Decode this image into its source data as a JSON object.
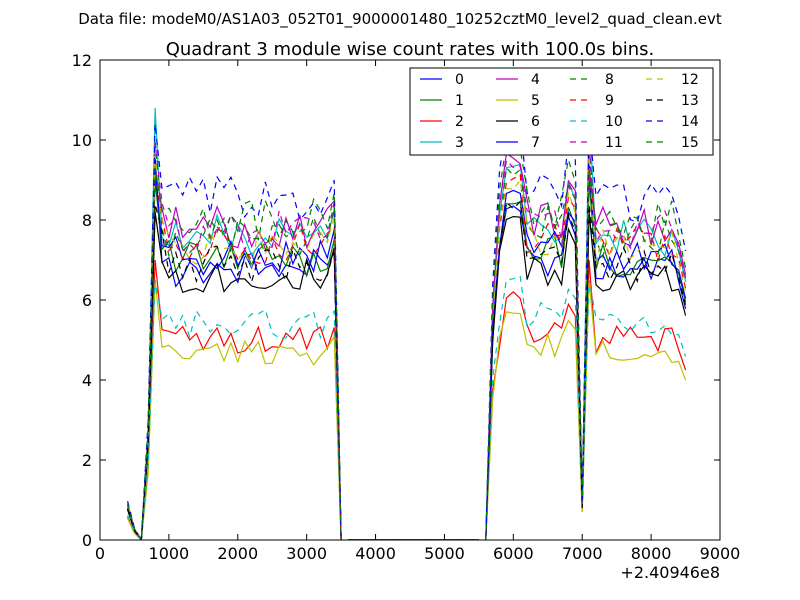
{
  "figure": {
    "suptitle": "Data file: modeM0/AS1A03_052T01_9000001480_10252cztM0_level2_quad_clean.evt"
  },
  "chart_data": {
    "type": "line",
    "title": "Quadrant 3 module wise count rates with 100.0s bins.",
    "xlabel": "",
    "ylabel": "",
    "x_offset_label": "+2.40946e8",
    "xlim": [
      0,
      9000
    ],
    "ylim": [
      0,
      12
    ],
    "xticks": [
      0,
      1000,
      2000,
      3000,
      4000,
      5000,
      6000,
      7000,
      8000,
      9000
    ],
    "xtick_labels": [
      "0",
      "1000",
      "2000",
      "3000",
      "4000",
      "5000",
      "6000",
      "7000",
      "8000",
      "9000"
    ],
    "yticks": [
      0,
      2,
      4,
      6,
      8,
      10,
      12
    ],
    "ytick_labels": [
      "0",
      "2",
      "4",
      "6",
      "8",
      "10",
      "12"
    ],
    "grid": false,
    "legend_position": "upper-right",
    "legend_columns": 4,
    "segments": [
      {
        "start": 400,
        "step": 100,
        "count": 32
      },
      {
        "start": 3600,
        "step": 100,
        "count": 20
      },
      {
        "start": 5600,
        "step": 100,
        "count": 30
      }
    ],
    "series": [
      {
        "name": "0",
        "color": "#0000ff",
        "dash": "solid",
        "base": 6.8,
        "peak": 9.6,
        "dip": 0.9
      },
      {
        "name": "1",
        "color": "#008000",
        "dash": "solid",
        "base": 7.0,
        "peak": 9.0,
        "dip": 0.8
      },
      {
        "name": "2",
        "color": "#ff0000",
        "dash": "solid",
        "base": 5.0,
        "peak": 7.0,
        "dip": 0.7
      },
      {
        "name": "3",
        "color": "#00bfbf",
        "dash": "solid",
        "base": 7.6,
        "peak": 10.8,
        "dip": 0.9
      },
      {
        "name": "4",
        "color": "#bf00bf",
        "dash": "solid",
        "base": 7.8,
        "peak": 9.3,
        "dip": 0.9
      },
      {
        "name": "5",
        "color": "#bfbf00",
        "dash": "solid",
        "base": 4.7,
        "peak": 6.5,
        "dip": 0.7
      },
      {
        "name": "6",
        "color": "#000000",
        "dash": "solid",
        "base": 6.6,
        "peak": 8.2,
        "dip": 0.8
      },
      {
        "name": "7",
        "color": "#0000ff",
        "dash": "solid",
        "base": 7.1,
        "peak": 9.3,
        "dip": 0.9
      },
      {
        "name": "8",
        "color": "#008000",
        "dash": "dashed",
        "base": 7.6,
        "peak": 10.0,
        "dip": 0.9
      },
      {
        "name": "9",
        "color": "#ff0000",
        "dash": "dashed",
        "base": 7.4,
        "peak": 9.2,
        "dip": 0.9
      },
      {
        "name": "10",
        "color": "#00bfbf",
        "dash": "dashed",
        "base": 5.4,
        "peak": 6.5,
        "dip": 0.8
      },
      {
        "name": "11",
        "color": "#bf00bf",
        "dash": "dashed",
        "base": 7.7,
        "peak": 9.9,
        "dip": 0.9
      },
      {
        "name": "12",
        "color": "#bfbf00",
        "dash": "dashed",
        "base": 7.3,
        "peak": 9.6,
        "dip": 0.9
      },
      {
        "name": "13",
        "color": "#000000",
        "dash": "dashed",
        "base": 6.9,
        "peak": 8.4,
        "dip": 0.8
      },
      {
        "name": "14",
        "color": "#0000ff",
        "dash": "dashed",
        "base": 8.5,
        "peak": 10.4,
        "dip": 1.0
      },
      {
        "name": "15",
        "color": "#008000",
        "dash": "dashed",
        "base": 8.0,
        "peak": 9.3,
        "dip": 0.9
      }
    ]
  }
}
